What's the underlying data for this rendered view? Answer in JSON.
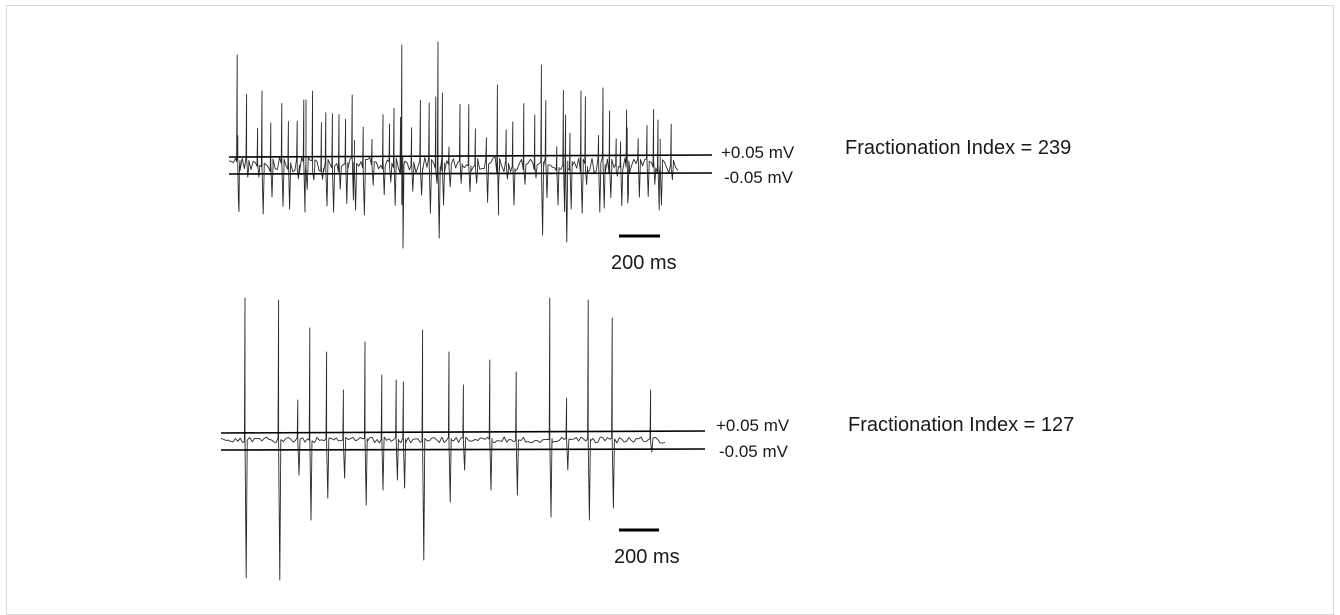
{
  "panels": [
    {
      "id": "top",
      "threshold_upper_label": "+0.05 mV",
      "threshold_lower_label": "-0.05 mV",
      "index_label": "Fractionation Index = 239",
      "scale_bar_label": "200 ms",
      "trace_style": "high-frequency fractionated"
    },
    {
      "id": "bottom",
      "threshold_upper_label": "+0.05 mV",
      "threshold_lower_label": "-0.05 mV",
      "index_label": "Fractionation Index = 127",
      "scale_bar_label": "200 ms",
      "trace_style": "discrete large deflections"
    }
  ],
  "colors": {
    "trace": "#2a2a2a",
    "threshold": "#000000",
    "text": "#1a1a1a",
    "frame": "#d9d9d9"
  }
}
